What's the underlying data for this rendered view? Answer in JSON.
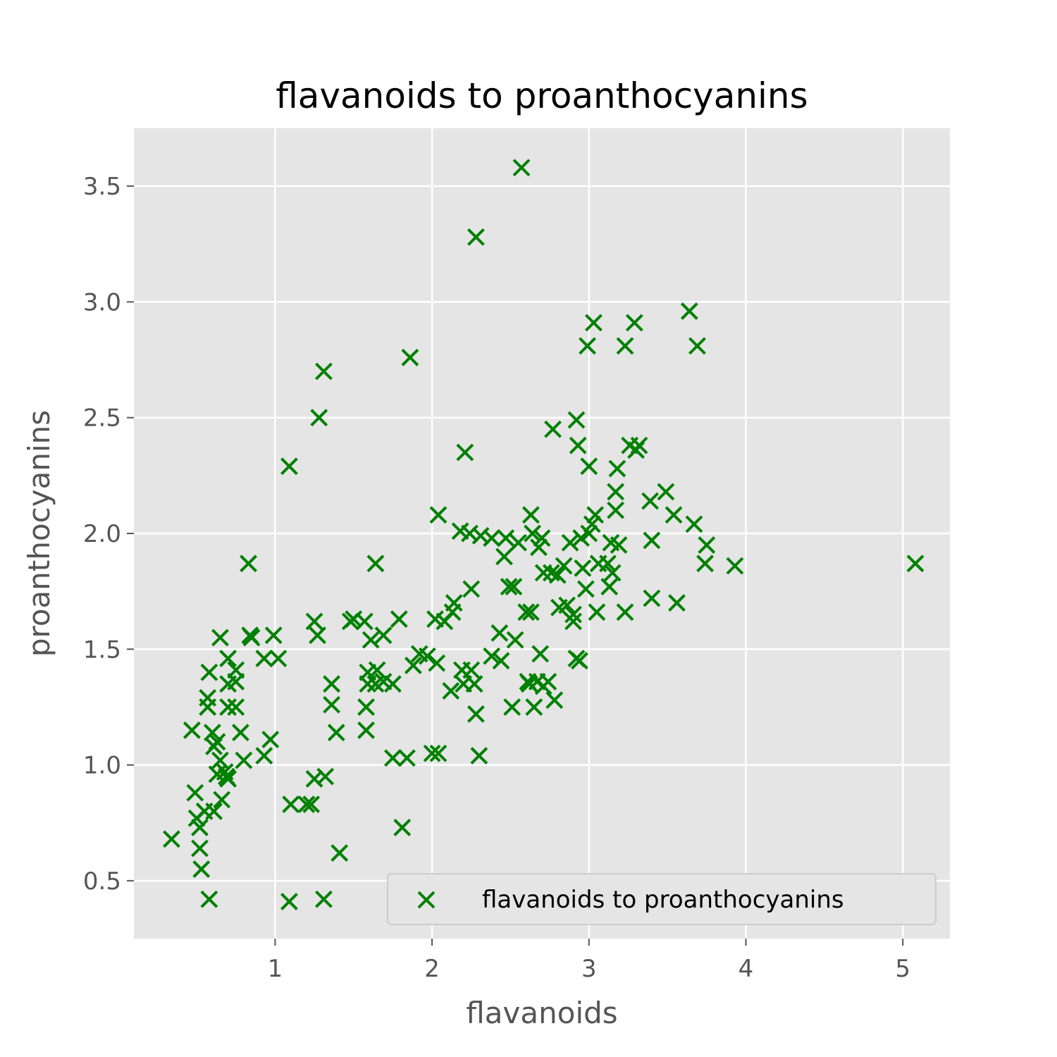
{
  "chart_data": {
    "type": "scatter",
    "title": "flavanoids to proanthocyanins",
    "xlabel": "flavanoids",
    "ylabel": "proanthocyanins",
    "xlim": [
      0.1,
      5.3
    ],
    "ylim": [
      0.25,
      3.75
    ],
    "xticks": [
      1,
      2,
      3,
      4,
      5
    ],
    "xtick_labels": [
      "1",
      "2",
      "3",
      "4",
      "5"
    ],
    "yticks": [
      0.5,
      1.0,
      1.5,
      2.0,
      2.5,
      3.0,
      3.5
    ],
    "ytick_labels": [
      "0.5",
      "1.0",
      "1.5",
      "2.0",
      "2.5",
      "3.0",
      "3.5"
    ],
    "grid": true,
    "legend_position": "bottom-right",
    "marker": "x",
    "marker_color": "#008000",
    "series": [
      {
        "name": "flavanoids to proanthocyanins",
        "points": [
          [
            0.34,
            0.68
          ],
          [
            0.47,
            1.15
          ],
          [
            0.49,
            0.88
          ],
          [
            0.5,
            0.77
          ],
          [
            0.52,
            0.73
          ],
          [
            0.52,
            0.64
          ],
          [
            0.53,
            0.55
          ],
          [
            0.55,
            0.8
          ],
          [
            0.57,
            1.29
          ],
          [
            0.57,
            1.25
          ],
          [
            0.58,
            1.4
          ],
          [
            0.58,
            0.42
          ],
          [
            0.6,
            1.14
          ],
          [
            0.61,
            1.08
          ],
          [
            0.61,
            0.8
          ],
          [
            0.63,
            1.1
          ],
          [
            0.63,
            0.96
          ],
          [
            0.65,
            1.55
          ],
          [
            0.65,
            1.02
          ],
          [
            0.66,
            0.85
          ],
          [
            0.68,
            0.97
          ],
          [
            0.69,
            0.95
          ],
          [
            0.7,
            1.46
          ],
          [
            0.7,
            1.35
          ],
          [
            0.7,
            1.25
          ],
          [
            0.7,
            0.94
          ],
          [
            0.75,
            1.41
          ],
          [
            0.75,
            1.36
          ],
          [
            0.75,
            1.25
          ],
          [
            0.78,
            1.14
          ],
          [
            0.8,
            1.02
          ],
          [
            0.83,
            1.87
          ],
          [
            0.84,
            1.56
          ],
          [
            0.85,
            1.55
          ],
          [
            0.93,
            1.46
          ],
          [
            0.93,
            1.04
          ],
          [
            0.97,
            1.11
          ],
          [
            0.99,
            1.56
          ],
          [
            1.02,
            1.46
          ],
          [
            1.09,
            2.29
          ],
          [
            1.09,
            0.41
          ],
          [
            1.1,
            0.83
          ],
          [
            1.2,
            0.83
          ],
          [
            1.23,
            0.83
          ],
          [
            1.25,
            1.62
          ],
          [
            1.25,
            0.94
          ],
          [
            1.27,
            1.56
          ],
          [
            1.28,
            2.5
          ],
          [
            1.31,
            2.7
          ],
          [
            1.31,
            0.42
          ],
          [
            1.32,
            0.95
          ],
          [
            1.36,
            1.35
          ],
          [
            1.36,
            1.26
          ],
          [
            1.39,
            1.14
          ],
          [
            1.41,
            0.62
          ],
          [
            1.48,
            1.62
          ],
          [
            1.5,
            1.63
          ],
          [
            1.57,
            1.62
          ],
          [
            1.59,
            1.4
          ],
          [
            1.59,
            1.35
          ],
          [
            1.58,
            1.25
          ],
          [
            1.58,
            1.15
          ],
          [
            1.61,
            1.54
          ],
          [
            1.64,
            1.87
          ],
          [
            1.65,
            1.41
          ],
          [
            1.64,
            1.35
          ],
          [
            1.69,
            1.56
          ],
          [
            1.69,
            1.36
          ],
          [
            1.75,
            1.35
          ],
          [
            1.75,
            1.03
          ],
          [
            1.79,
            1.63
          ],
          [
            1.81,
            0.73
          ],
          [
            1.84,
            1.03
          ],
          [
            1.86,
            2.76
          ],
          [
            1.88,
            1.43
          ],
          [
            1.92,
            1.48
          ],
          [
            1.97,
            1.47
          ],
          [
            2.0,
            1.05
          ],
          [
            2.02,
            1.63
          ],
          [
            2.03,
            1.44
          ],
          [
            2.04,
            1.05
          ],
          [
            2.04,
            2.08
          ],
          [
            2.08,
            1.62
          ],
          [
            2.12,
            1.32
          ],
          [
            2.13,
            1.66
          ],
          [
            2.14,
            1.7
          ],
          [
            2.18,
            2.01
          ],
          [
            2.19,
            1.41
          ],
          [
            2.2,
            1.35
          ],
          [
            2.21,
            2.35
          ],
          [
            2.24,
            2.0
          ],
          [
            2.25,
            1.76
          ],
          [
            2.25,
            1.41
          ],
          [
            2.27,
            1.35
          ],
          [
            2.28,
            3.28
          ],
          [
            2.28,
            1.22
          ],
          [
            2.3,
            1.04
          ],
          [
            2.31,
            1.99
          ],
          [
            2.38,
            1.98
          ],
          [
            2.38,
            1.47
          ],
          [
            2.43,
            1.57
          ],
          [
            2.44,
            1.45
          ],
          [
            2.46,
            1.9
          ],
          [
            2.47,
            1.98
          ],
          [
            2.49,
            1.77
          ],
          [
            2.51,
            1.25
          ],
          [
            2.52,
            1.77
          ],
          [
            2.53,
            1.54
          ],
          [
            2.55,
            1.96
          ],
          [
            2.57,
            3.58
          ],
          [
            2.6,
            1.66
          ],
          [
            2.61,
            1.36
          ],
          [
            2.62,
            1.35
          ],
          [
            2.63,
            1.66
          ],
          [
            2.63,
            2.08
          ],
          [
            2.64,
            2.0
          ],
          [
            2.65,
            1.25
          ],
          [
            2.67,
            1.36
          ],
          [
            2.68,
            1.94
          ],
          [
            2.69,
            1.48
          ],
          [
            2.7,
            1.98
          ],
          [
            2.71,
            1.34
          ],
          [
            2.71,
            1.83
          ],
          [
            2.74,
            1.36
          ],
          [
            2.76,
            1.83
          ],
          [
            2.77,
            2.45
          ],
          [
            2.78,
            1.28
          ],
          [
            2.8,
            1.82
          ],
          [
            2.81,
            1.68
          ],
          [
            2.84,
            1.86
          ],
          [
            2.86,
            1.69
          ],
          [
            2.88,
            1.96
          ],
          [
            2.9,
            1.62
          ],
          [
            2.9,
            1.65
          ],
          [
            2.92,
            2.49
          ],
          [
            2.92,
            1.46
          ],
          [
            2.93,
            2.38
          ],
          [
            2.94,
            1.45
          ],
          [
            2.95,
            1.98
          ],
          [
            2.96,
            1.85
          ],
          [
            2.98,
            1.76
          ],
          [
            2.99,
            2.81
          ],
          [
            3.0,
            2.29
          ],
          [
            3.0,
            2.0
          ],
          [
            3.02,
            2.04
          ],
          [
            3.03,
            2.91
          ],
          [
            3.04,
            2.08
          ],
          [
            3.05,
            1.66
          ],
          [
            3.06,
            1.87
          ],
          [
            3.12,
            1.87
          ],
          [
            3.13,
            1.77
          ],
          [
            3.14,
            1.96
          ],
          [
            3.15,
            1.83
          ],
          [
            3.17,
            2.1
          ],
          [
            3.17,
            2.18
          ],
          [
            3.18,
            2.28
          ],
          [
            3.19,
            1.95
          ],
          [
            3.23,
            2.81
          ],
          [
            3.23,
            1.66
          ],
          [
            3.26,
            2.38
          ],
          [
            3.29,
            2.91
          ],
          [
            3.3,
            2.36
          ],
          [
            3.32,
            2.38
          ],
          [
            3.39,
            2.14
          ],
          [
            3.4,
            1.97
          ],
          [
            3.4,
            1.72
          ],
          [
            3.49,
            2.18
          ],
          [
            3.54,
            2.08
          ],
          [
            3.56,
            1.7
          ],
          [
            3.64,
            2.96
          ],
          [
            3.67,
            2.04
          ],
          [
            3.69,
            2.81
          ],
          [
            3.74,
            1.87
          ],
          [
            3.75,
            1.95
          ],
          [
            3.93,
            1.86
          ],
          [
            5.08,
            1.87
          ]
        ]
      }
    ]
  }
}
